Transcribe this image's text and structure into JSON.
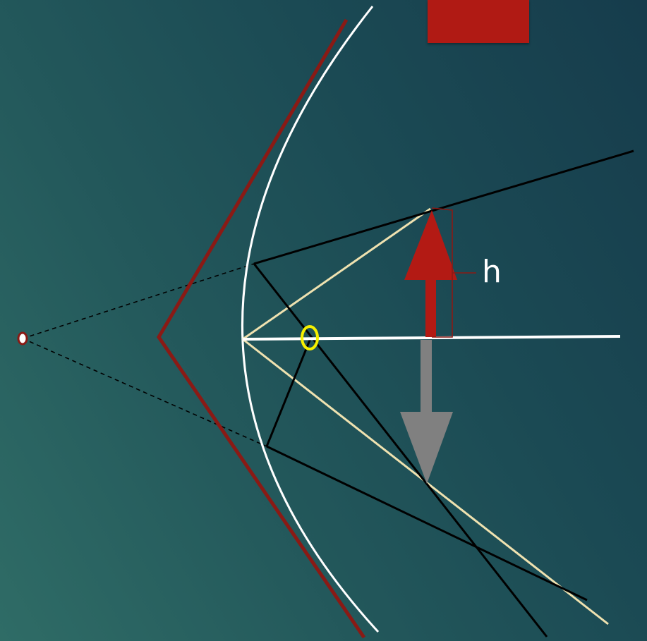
{
  "diagram": {
    "height_label": "h"
  },
  "colors": {
    "mirror_outer": "#8a1a15",
    "mirror_curve": "#ffffff",
    "optical_axis": "#ffffff",
    "ray_black": "#000000",
    "ray_light": "#efe2b0",
    "object_arrow": "#b31a14",
    "image_arrow": "#808080",
    "focus_marker": "#f5f000",
    "center_marker": "#8a1a15",
    "top_box": "#b01a14"
  }
}
